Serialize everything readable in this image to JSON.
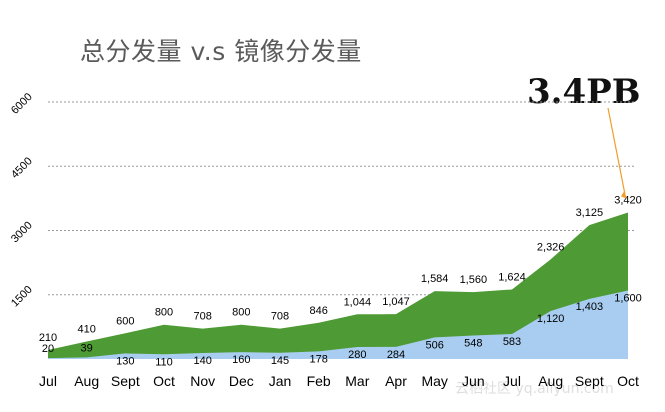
{
  "chart_data": {
    "type": "area",
    "title": "总分发量 v.s 镜像分发量",
    "callout": "3.4PB",
    "categories": [
      "Jul",
      "Aug",
      "Sept",
      "Oct",
      "Nov",
      "Dec",
      "Jan",
      "Feb",
      "Mar",
      "Apr",
      "May",
      "Jun",
      "Jul",
      "Aug",
      "Sept",
      "Oct"
    ],
    "series": [
      {
        "values": [
          210,
          410,
          600,
          800,
          708,
          800,
          708,
          846,
          1044,
          1047,
          1584,
          1560,
          1624,
          2326,
          3125,
          3420
        ],
        "labels": [
          "210",
          "410",
          "600",
          "800",
          "708",
          "800",
          "708",
          "846",
          "1,044",
          "1,047",
          "1,584",
          "1,560",
          "1,624",
          "2,326",
          "3,125",
          "3,420"
        ],
        "color": "#4e9a34"
      },
      {
        "values": [
          20,
          39,
          130,
          110,
          140,
          160,
          145,
          178,
          280,
          284,
          506,
          548,
          583,
          1120,
          1403,
          1600
        ],
        "labels": [
          "20",
          "39",
          "130",
          "110",
          "140",
          "160",
          "145",
          "178",
          "280",
          "284",
          "506",
          "548",
          "583",
          "1,120",
          "1,403",
          "1,600"
        ],
        "color": "#a8cdf0"
      }
    ],
    "yticks": [
      "1500",
      "3000",
      "4500",
      "6000"
    ],
    "ytick_values": [
      1500,
      3000,
      4500,
      6000
    ],
    "ylim": [
      0,
      6000
    ],
    "grid": true,
    "legend": "none"
  },
  "watermark": "云栖社区 yq.aliyun.com"
}
